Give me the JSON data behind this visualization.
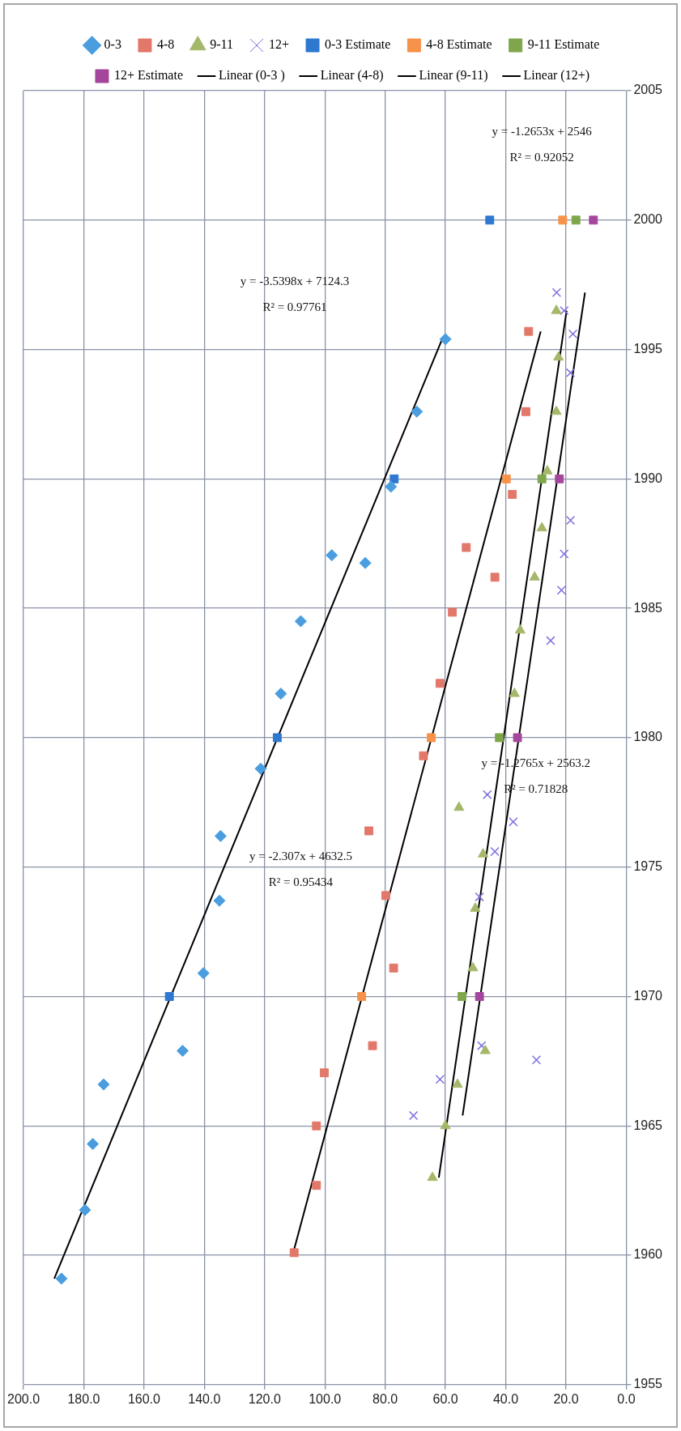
{
  "chart_data": {
    "type": "scatter",
    "legend": "top",
    "grid": true,
    "xlim": [
      200,
      0
    ],
    "xticks": [
      {
        "value": 200,
        "label": "200.0"
      },
      {
        "value": 180,
        "label": "180.0"
      },
      {
        "value": 160,
        "label": "160.0"
      },
      {
        "value": 140,
        "label": "140.0"
      },
      {
        "value": 120,
        "label": "120.0"
      },
      {
        "value": 100,
        "label": "100.0"
      },
      {
        "value": 80,
        "label": "80.0"
      },
      {
        "value": 60,
        "label": "60.0"
      },
      {
        "value": 40,
        "label": "40.0"
      },
      {
        "value": 20,
        "label": "20.0"
      },
      {
        "value": 0,
        "label": "0.0"
      }
    ],
    "ylim": [
      1955,
      2005
    ],
    "yticks": [
      1955,
      1960,
      1965,
      1970,
      1975,
      1980,
      1985,
      1990,
      1995,
      2000,
      2005
    ],
    "series": [
      {
        "name": "0-3",
        "color": "#4a9ee0",
        "marker": "diamond",
        "x": [
          187.4,
          179.6,
          177,
          173.4,
          147.2,
          140.3,
          135,
          134.6,
          121.3,
          114.6,
          108,
          86.6,
          97.7,
          78.1,
          69.5,
          60
        ],
        "values": [
          1959.1,
          1961.75,
          1964.3,
          1966.6,
          1967.9,
          1970.9,
          1973.7,
          1976.2,
          1978.8,
          1981.7,
          1984.5,
          1986.75,
          1987.05,
          1989.7,
          1992.6,
          1995.4
        ]
      },
      {
        "name": "4-8",
        "color": "#e2786a",
        "marker": "square",
        "x": [
          110.2,
          102.8,
          102.8,
          100.2,
          84.2,
          77.2,
          79.8,
          85.4,
          67.3,
          61.8,
          57.7,
          43.6,
          53.1,
          37.8,
          33.3,
          32.4
        ],
        "values": [
          1960.1,
          1962.7,
          1965,
          1967.05,
          1968.1,
          1971.1,
          1973.9,
          1976.4,
          1979.3,
          1982.1,
          1984.85,
          1986.2,
          1987.35,
          1989.4,
          1992.6,
          1995.7
        ]
      },
      {
        "name": "9-11",
        "color": "#a5b86a",
        "marker": "triangle",
        "x": [
          64.3,
          60,
          56,
          46.8,
          50.9,
          50.1,
          47.5,
          55.5,
          37.1,
          35.2,
          30.4,
          28,
          26.2,
          23.2,
          22.5,
          23.2
        ],
        "values": [
          1963,
          1965,
          1966.6,
          1967.9,
          1971.1,
          1973.4,
          1975.5,
          1977.3,
          1981.7,
          1984.15,
          1986.2,
          1988.1,
          1990.3,
          1992.6,
          1994.7,
          1996.5
        ]
      },
      {
        "name": "12+",
        "color": "#7b6fe0",
        "marker": "cross",
        "x": [
          70.6,
          61.8,
          29.8,
          48,
          48.7,
          43.6,
          37.5,
          46.1,
          25.1,
          21.5,
          20.6,
          18.5,
          18.5,
          17.7,
          20.6,
          23.1
        ],
        "values": [
          1965.4,
          1966.8,
          1967.55,
          1968.1,
          1973.85,
          1975.6,
          1976.75,
          1977.8,
          1983.75,
          1985.7,
          1987.1,
          1988.4,
          1994.1,
          1995.6,
          1996.5,
          1997.2
        ]
      },
      {
        "name": "0-3 Estimate",
        "color": "#2f78d0",
        "marker": "square",
        "x": [
          151.6,
          115.8,
          77,
          45.3
        ],
        "values": [
          1970,
          1980,
          1990,
          2000
        ]
      },
      {
        "name": "4-8 Estimate",
        "color": "#f7924a",
        "marker": "square",
        "x": [
          87.8,
          64.7,
          39.8,
          21.1
        ],
        "values": [
          1970,
          1980,
          1990,
          2000
        ]
      },
      {
        "name": "9-11 Estimate",
        "color": "#7fa64a",
        "marker": "square",
        "x": [
          54.5,
          42.1,
          28,
          16.7
        ],
        "values": [
          1970,
          1980,
          1990,
          2000
        ]
      },
      {
        "name": "12+ Estimate",
        "color": "#a4479c",
        "marker": "square",
        "x": [
          48.7,
          36.1,
          22.2,
          10.9
        ],
        "values": [
          1970,
          1980,
          1990,
          2000
        ]
      },
      {
        "name": "Linear (0-3 )",
        "color": "#000000",
        "type": "line",
        "marker": "none",
        "x": [
          189.8,
          61.1
        ],
        "values": [
          1959.1,
          1995.4
        ]
      },
      {
        "name": "Linear (4-8)",
        "color": "#000000",
        "type": "line",
        "marker": "none",
        "x": [
          110.5,
          28.4
        ],
        "values": [
          1960.1,
          1995.7
        ]
      },
      {
        "name": "Linear (9-11)",
        "color": "#000000",
        "type": "line",
        "marker": "none",
        "x": [
          62.2,
          19.8
        ],
        "values": [
          1963,
          1996.5
        ]
      },
      {
        "name": "Linear (12+)",
        "color": "#000000",
        "type": "line",
        "marker": "none",
        "x": [
          54.3,
          13.7
        ],
        "values": [
          1965.4,
          1997.2
        ]
      }
    ],
    "annotations": [
      "y = -3.5398x + 7124.3",
      "R² = 0.97761",
      "y = -2.307x + 4632.5",
      "R² = 0.95434",
      "y = -1.2765x + 2563.2",
      "R² = 0.71828",
      "y = -1.2653x + 2546",
      "R² = 0.92052"
    ]
  }
}
